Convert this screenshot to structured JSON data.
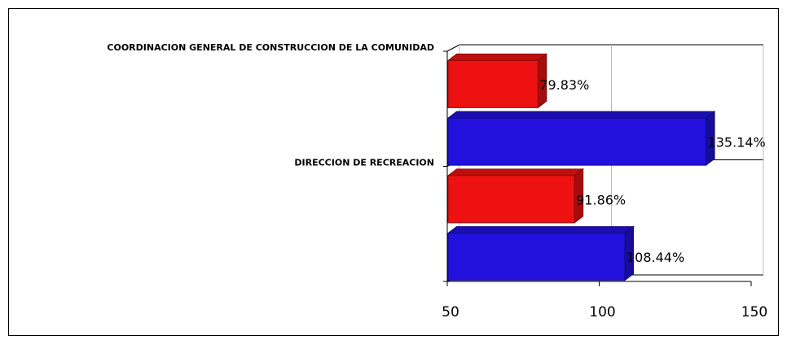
{
  "chart_data": {
    "type": "bar3d-horizontal",
    "categories": [
      "COORDINACION GENERAL DE CONSTRUCCION DE LA COMUNIDAD",
      "DIRECCION DE RECREACION"
    ],
    "series": [
      {
        "color": "#ee1111",
        "values": [
          79.83,
          91.86
        ],
        "value_labels": [
          "79.83%",
          "91.86%"
        ]
      },
      {
        "color": "#2211dd",
        "values": [
          135.14,
          108.44
        ],
        "value_labels": [
          "135.14%",
          "108.44%"
        ]
      }
    ],
    "xlim": [
      50,
      150
    ],
    "xticks": [
      50,
      100,
      150
    ],
    "grid": true
  }
}
